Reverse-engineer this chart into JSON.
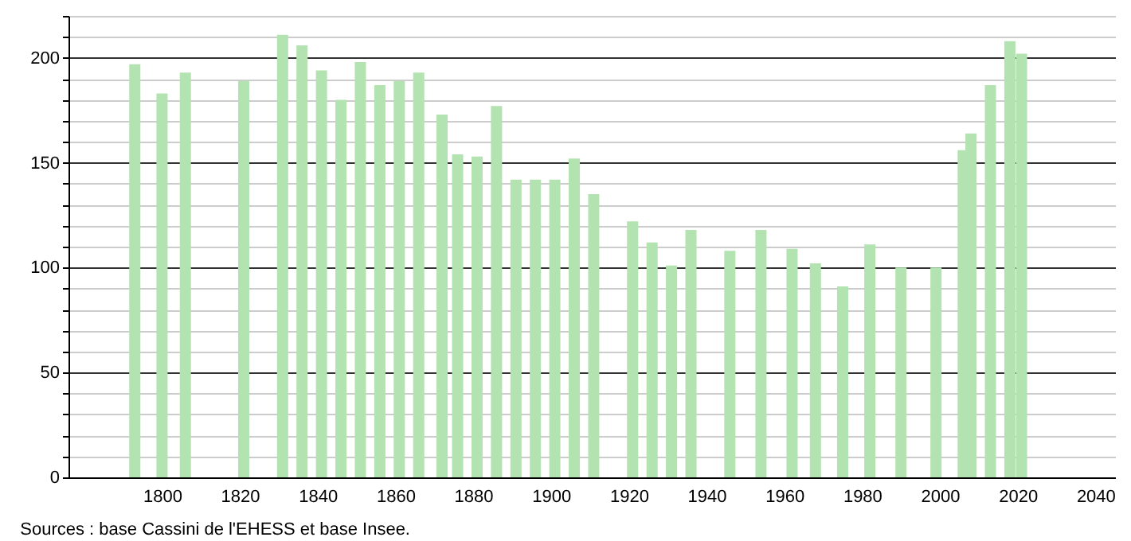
{
  "chart_data": {
    "type": "bar",
    "x": [
      1793,
      1800,
      1806,
      1821,
      1831,
      1836,
      1841,
      1846,
      1851,
      1856,
      1861,
      1866,
      1872,
      1876,
      1881,
      1886,
      1891,
      1896,
      1901,
      1906,
      1911,
      1921,
      1926,
      1931,
      1936,
      1946,
      1954,
      1962,
      1968,
      1975,
      1982,
      1990,
      1999,
      2006,
      2008,
      2013,
      2018,
      2021
    ],
    "values": [
      197,
      183,
      193,
      189,
      211,
      206,
      194,
      180,
      198,
      187,
      189,
      193,
      173,
      154,
      153,
      177,
      142,
      142,
      142,
      152,
      135,
      122,
      112,
      101,
      118,
      108,
      118,
      109,
      102,
      91,
      111,
      100,
      100,
      156,
      164,
      187,
      208,
      202
    ],
    "color": "#b3e3b0",
    "xlim": [
      1778,
      2043
    ],
    "xticks": [
      1800,
      1820,
      1840,
      1860,
      1880,
      1900,
      1920,
      1940,
      1960,
      1980,
      2000,
      2020,
      2040
    ],
    "ylim": [
      0,
      220
    ],
    "yticks": [
      0,
      {
        "value": 10,
        "label": null
      },
      {
        "value": 20,
        "label": null
      },
      {
        "value": 30,
        "label": null
      },
      {
        "value": 40,
        "label": null
      },
      50,
      {
        "value": 60,
        "label": null
      },
      {
        "value": 70,
        "label": null
      },
      {
        "value": 80,
        "label": null
      },
      {
        "value": 90,
        "label": null
      },
      100,
      {
        "value": 110,
        "label": null
      },
      {
        "value": 120,
        "label": null
      },
      {
        "value": 130,
        "label": null
      },
      {
        "value": 140,
        "label": null
      },
      150,
      {
        "value": 160,
        "label": null
      },
      {
        "value": 170,
        "label": null
      },
      {
        "value": 180,
        "label": null
      },
      {
        "value": 190,
        "label": null
      },
      200,
      {
        "value": 210,
        "label": null
      },
      {
        "value": 220,
        "label": null
      }
    ],
    "grid": "y",
    "annotations": [
      "Sources : base Cassini de l'EHESS et base Insee."
    ]
  }
}
